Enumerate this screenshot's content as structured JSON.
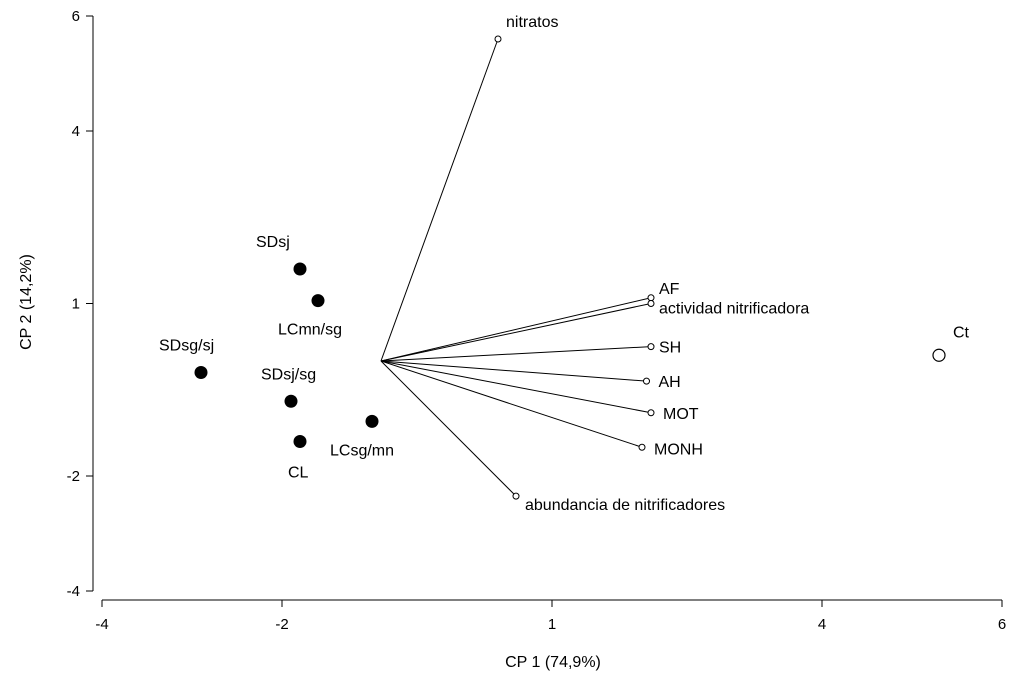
{
  "chart_data": {
    "type": "scatter",
    "title": "",
    "xlabel": "CP 1 (74,9%)",
    "ylabel": "CP 2 (14,2%)",
    "xlim": [
      -4,
      6
    ],
    "ylim": [
      -4,
      6
    ],
    "x_ticks": [
      -4,
      -2,
      1,
      4,
      6
    ],
    "y_ticks": [
      -4,
      -2,
      1,
      4,
      6
    ],
    "grid": false,
    "legend": "none",
    "origin": [
      -0.9,
      0.0
    ],
    "samples": [
      {
        "label": "SDsj",
        "x": -1.8,
        "y": 1.6
      },
      {
        "label": "LCmn/sg",
        "x": -1.6,
        "y": 1.05
      },
      {
        "label": "SDsg/sj",
        "x": -2.9,
        "y": -0.2
      },
      {
        "label": "SDsj/sg",
        "x": -1.9,
        "y": -0.7
      },
      {
        "label": "CL",
        "x": -1.8,
        "y": -1.4
      },
      {
        "label": "LCsg/mn",
        "x": -1.0,
        "y": -1.05
      },
      {
        "label": "Ct",
        "x": 5.3,
        "y": 0.1
      }
    ],
    "variables": [
      {
        "label": "nitratos",
        "x": 0.4,
        "y": 5.6
      },
      {
        "label": "AF",
        "x": 2.1,
        "y": 1.1
      },
      {
        "label": "actividad nitrificadora",
        "x": 2.1,
        "y": 1.0
      },
      {
        "label": "SH",
        "x": 2.1,
        "y": 0.25
      },
      {
        "label": "AH",
        "x": 2.05,
        "y": -0.35
      },
      {
        "label": "MOT",
        "x": 2.1,
        "y": -0.9
      },
      {
        "label": "MONH",
        "x": 2.0,
        "y": -1.5
      },
      {
        "label": "abundancia de nitrificadores",
        "x": 0.6,
        "y": -2.35
      }
    ]
  }
}
